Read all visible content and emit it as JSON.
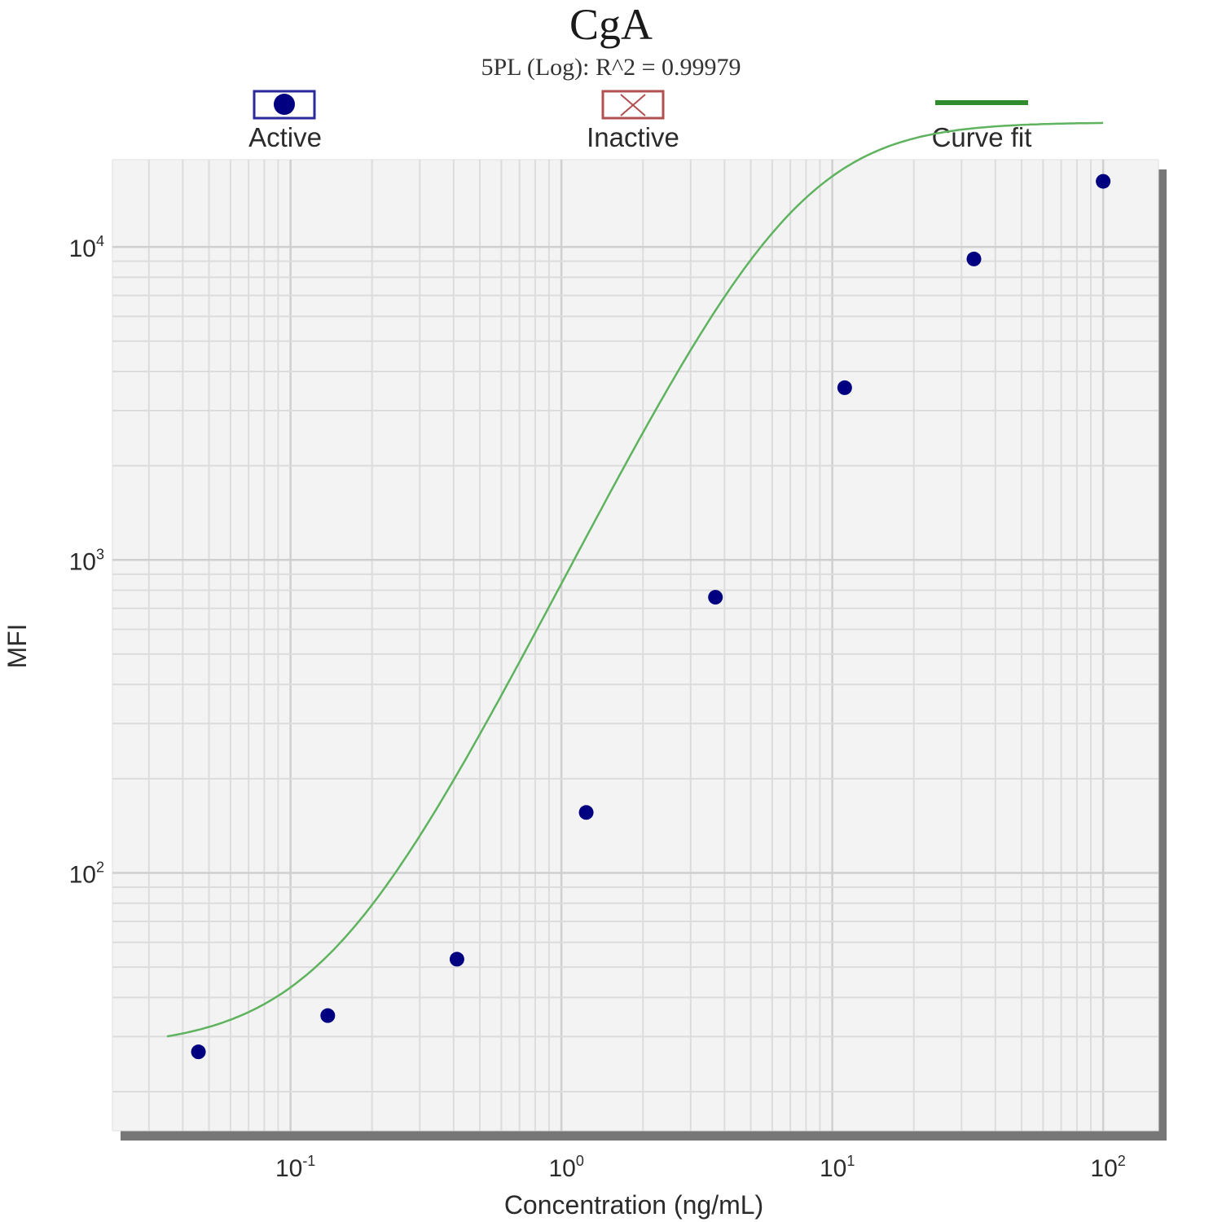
{
  "chart_data": {
    "type": "scatter",
    "title": "CgA",
    "subtitle": "5PL (Log): R^2 = 0.99979",
    "xlabel": "Concentration (ng/mL)",
    "ylabel": "MFI",
    "x_scale": "log",
    "y_scale": "log",
    "xlim": [
      0.022,
      160
    ],
    "ylim": [
      15,
      19000
    ],
    "grid": true,
    "legend_position": "top",
    "legend": [
      {
        "name": "Active",
        "marker": "filled-circle",
        "color": "#1a1a8c"
      },
      {
        "name": "Inactive",
        "marker": "cross-box",
        "color": "#b05050"
      },
      {
        "name": "Curve fit",
        "marker": "line",
        "color": "#2e8b2e"
      }
    ],
    "x_ticks": [
      {
        "value": 0.1,
        "base": "10",
        "exp": "-1"
      },
      {
        "value": 1,
        "base": "10",
        "exp": "0"
      },
      {
        "value": 10,
        "base": "10",
        "exp": "1"
      },
      {
        "value": 100,
        "base": "10",
        "exp": "2"
      }
    ],
    "y_ticks": [
      {
        "value": 100,
        "base": "10",
        "exp": "2"
      },
      {
        "value": 1000,
        "base": "10",
        "exp": "3"
      },
      {
        "value": 10000,
        "base": "10",
        "exp": "4"
      }
    ],
    "series": [
      {
        "name": "Active",
        "color": "#000080",
        "x": [
          0.0457,
          0.1372,
          0.4115,
          1.2346,
          3.7037,
          11.111,
          33.333,
          100
        ],
        "y": [
          26.8,
          35.0,
          53.0,
          156,
          760,
          3550,
          9150,
          16200
        ]
      }
    ],
    "curve_fit": {
      "name": "Curve fit",
      "model": "5PL",
      "color": "#5fb35f",
      "x_range": [
        0.035,
        100
      ],
      "params": {
        "a": 27.5,
        "d": 25000,
        "c": 8.1,
        "b": 1.73,
        "g": 1.25
      }
    }
  }
}
